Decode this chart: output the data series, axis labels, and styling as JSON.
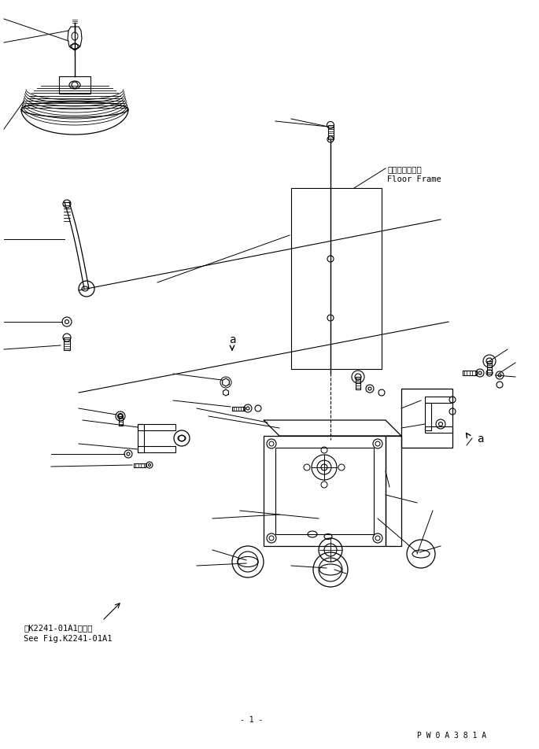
{
  "bg_color": "#ffffff",
  "line_color": "#000000",
  "figsize": [
    6.85,
    9.53
  ],
  "dpi": 100,
  "floor_frame_jp": "フロアフレーム",
  "floor_frame_en": "Floor Frame",
  "see_fig_jp": "第K2241-01A1図参照",
  "see_fig_en": "See Fig.K2241-01A1",
  "watermark": "P W 0 A 3 8 1 A"
}
